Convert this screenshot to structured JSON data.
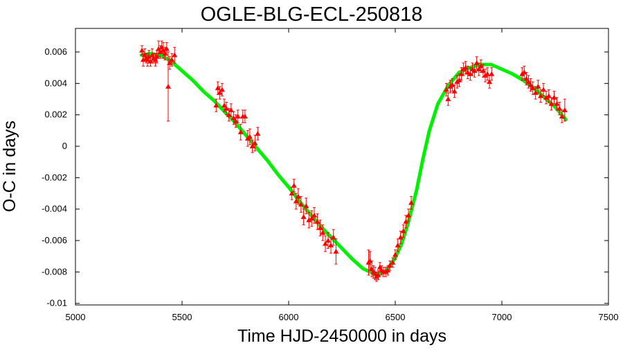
{
  "chart_data": {
    "type": "scatter",
    "title": "OGLE-BLG-ECL-250818",
    "xlabel": "Time HJD-2450000 in days",
    "ylabel": "O-C in days",
    "xlim": [
      5000,
      7500
    ],
    "ylim": [
      -0.0101,
      0.0075
    ],
    "x_ticks": [
      5000,
      5500,
      6000,
      6500,
      7000,
      7500
    ],
    "x_tick_labels": [
      "5000",
      "5500",
      "6000",
      "6500",
      "7000",
      "7500"
    ],
    "y_ticks": [
      0.006,
      0.004,
      0.002,
      0,
      -0.002,
      -0.004,
      -0.006,
      -0.008,
      -0.01
    ],
    "y_tick_labels": [
      "0.006",
      "0.004",
      "0.002",
      "0",
      "-0.002",
      "-0.004",
      "-0.006",
      "-0.008",
      "-0.01"
    ],
    "grid": false,
    "series": [
      {
        "kind": "points-with-errorbars",
        "color": "#ff0000",
        "marker": "triangle",
        "x": [
          5312,
          5318,
          5325,
          5332,
          5338,
          5345,
          5352,
          5360,
          5367,
          5375,
          5382,
          5390,
          5398,
          5405,
          5412,
          5420,
          5428,
          5435,
          5442,
          5452,
          5465,
          5660,
          5668,
          5677,
          5688,
          5698,
          5708,
          5720,
          5730,
          5742,
          5752,
          5762,
          5775,
          5785,
          5795,
          5808,
          5818,
          5830,
          5842,
          5855,
          6015,
          6025,
          6035,
          6045,
          6058,
          6070,
          6082,
          6095,
          6108,
          6120,
          6135,
          6148,
          6160,
          6172,
          6185,
          6198,
          6210,
          6222,
          6375,
          6382,
          6390,
          6398,
          6405,
          6412,
          6420,
          6428,
          6436,
          6445,
          6455,
          6465,
          6475,
          6488,
          6500,
          6512,
          6525,
          6538,
          6550,
          6562,
          6575,
          6740,
          6748,
          6758,
          6768,
          6778,
          6790,
          6800,
          6810,
          6820,
          6830,
          6840,
          6852,
          6862,
          6872,
          6882,
          6892,
          6902,
          6912,
          6922,
          6932,
          6942,
          6952,
          7095,
          7105,
          7115,
          7125,
          7135,
          7145,
          7158,
          7170,
          7182,
          7195,
          7208,
          7220,
          7232,
          7245,
          7258,
          7270,
          7282,
          7295
        ],
        "y": [
          0.0061,
          0.0055,
          0.0058,
          0.0056,
          0.0055,
          0.0057,
          0.0054,
          0.0058,
          0.0056,
          0.0055,
          0.0057,
          0.0062,
          0.006,
          0.0063,
          0.0061,
          0.0059,
          0.0062,
          0.0038,
          0.0053,
          0.0055,
          0.0058,
          0.0026,
          0.0037,
          0.0034,
          0.0036,
          0.0026,
          0.0024,
          0.002,
          0.0023,
          0.0018,
          0.0016,
          0.0019,
          0.0009,
          0.0019,
          0.0019,
          0.0005,
          0.0006,
          0.0,
          0.0002,
          0.0008,
          -0.003,
          -0.0025,
          -0.0035,
          -0.0032,
          -0.0037,
          -0.0045,
          -0.0038,
          -0.0047,
          -0.0046,
          -0.0044,
          -0.0048,
          -0.0052,
          -0.0055,
          -0.0062,
          -0.006,
          -0.0063,
          -0.0058,
          -0.0067,
          -0.0074,
          -0.0073,
          -0.0078,
          -0.008,
          -0.0081,
          -0.0083,
          -0.0082,
          -0.0077,
          -0.0079,
          -0.008,
          -0.008,
          -0.0079,
          -0.0076,
          -0.0074,
          -0.0069,
          -0.0063,
          -0.0058,
          -0.0054,
          -0.0048,
          -0.0044,
          -0.0036,
          0.0036,
          0.003,
          0.0038,
          0.0039,
          0.0035,
          0.0041,
          0.0042,
          0.0046,
          0.0049,
          0.005,
          0.0047,
          0.0046,
          0.0049,
          0.0048,
          0.0053,
          0.0049,
          0.0051,
          0.0048,
          0.0045,
          0.0046,
          0.0041,
          0.0046,
          0.0046,
          0.0047,
          0.0043,
          0.0041,
          0.0039,
          0.0037,
          0.0034,
          0.0038,
          0.0032,
          0.0036,
          0.0031,
          0.0032,
          0.0027,
          0.0031,
          0.0027,
          0.0024,
          0.0019,
          0.0023
        ],
        "err": [
          0.0003,
          0.0004,
          0.0004,
          0.0003,
          0.0004,
          0.0004,
          0.0003,
          0.0004,
          0.0003,
          0.0004,
          0.0004,
          0.0005,
          0.0004,
          0.0004,
          0.0005,
          0.0004,
          0.0004,
          0.0022,
          0.0004,
          0.0004,
          0.0005,
          0.0004,
          0.0004,
          0.0004,
          0.0004,
          0.0004,
          0.0004,
          0.0004,
          0.0004,
          0.0004,
          0.0004,
          0.0004,
          0.0005,
          0.0004,
          0.0004,
          0.0005,
          0.0005,
          0.0004,
          0.0005,
          0.0004,
          0.0004,
          0.0004,
          0.0005,
          0.0005,
          0.0005,
          0.0005,
          0.0005,
          0.0005,
          0.0005,
          0.0005,
          0.0005,
          0.0005,
          0.0005,
          0.0005,
          0.0005,
          0.0005,
          0.0005,
          0.0008,
          0.0008,
          0.0006,
          0.0005,
          0.0004,
          0.0004,
          0.0003,
          0.0003,
          0.0003,
          0.0003,
          0.0003,
          0.0003,
          0.0003,
          0.0003,
          0.0003,
          0.0003,
          0.0004,
          0.0004,
          0.0004,
          0.0004,
          0.0004,
          0.0004,
          0.0004,
          0.0004,
          0.0004,
          0.0004,
          0.0004,
          0.0004,
          0.0004,
          0.0004,
          0.0004,
          0.0004,
          0.0004,
          0.0004,
          0.0004,
          0.0004,
          0.0004,
          0.0004,
          0.0004,
          0.0004,
          0.0004,
          0.0004,
          0.0004,
          0.0004,
          0.0004,
          0.0004,
          0.0004,
          0.0004,
          0.0004,
          0.0004,
          0.0004,
          0.0004,
          0.0004,
          0.0004,
          0.0004,
          0.0004,
          0.0004,
          0.0004,
          0.0004,
          0.0004,
          0.0004,
          0.0007
        ]
      },
      {
        "kind": "fit-line",
        "color": "#00ee00",
        "x": [
          5310,
          5350,
          5400,
          5450,
          5500,
          5550,
          5600,
          5650,
          5700,
          5750,
          5800,
          5850,
          5900,
          5950,
          6000,
          6050,
          6100,
          6150,
          6200,
          6250,
          6300,
          6350,
          6400,
          6430,
          6460,
          6500,
          6530,
          6560,
          6600,
          6630,
          6660,
          6700,
          6750,
          6800,
          6850,
          6900,
          6950,
          7000,
          7050,
          7100,
          7150,
          7200,
          7250,
          7300
        ],
        "y": [
          0.0058,
          0.0059,
          0.0058,
          0.0054,
          0.0048,
          0.0042,
          0.0035,
          0.0029,
          0.0022,
          0.0015,
          0.0007,
          -0.0001,
          -0.0009,
          -0.0018,
          -0.0026,
          -0.0035,
          -0.0043,
          -0.0051,
          -0.0058,
          -0.0065,
          -0.0072,
          -0.0078,
          -0.0081,
          -0.0081,
          -0.0079,
          -0.0071,
          -0.0062,
          -0.0049,
          -0.0028,
          -0.0008,
          0.001,
          0.0027,
          0.0039,
          0.0047,
          0.005,
          0.0052,
          0.0052,
          0.0049,
          0.0046,
          0.0042,
          0.0037,
          0.0031,
          0.0025,
          0.0017
        ]
      }
    ]
  }
}
